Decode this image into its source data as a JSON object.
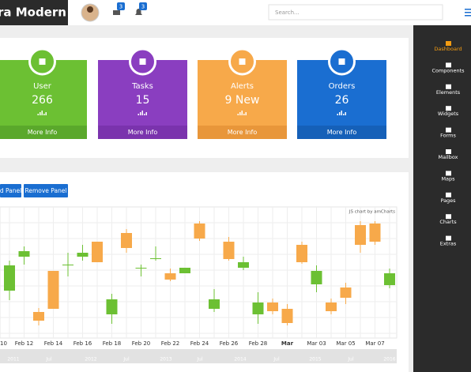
{
  "topbar": {
    "brand": "ra Modern",
    "mail_badge": 3,
    "alert_badge": 3,
    "search_placeholder": "Search..."
  },
  "sidebar": {
    "items": [
      "Dashboard",
      "Components",
      "Elements",
      "Widgets",
      "Forms",
      "Mailbox",
      "Maps",
      "Pages",
      "Charts",
      "Extras"
    ],
    "active_color": "#f39c12"
  },
  "cards": [
    {
      "label": "User",
      "value": 266,
      "link": "More Info",
      "color": "#6cc033",
      "footer_color": "#5aa82b"
    },
    {
      "label": "Tasks",
      "value": 15,
      "link": "More Info",
      "color": "#8a3ec0",
      "footer_color": "#7a33ad"
    },
    {
      "label": "Alerts",
      "value": "9 New",
      "link": "More Info",
      "color": "#f7a94a",
      "footer_color": "#e8963a"
    },
    {
      "label": "Orders",
      "value": 26,
      "link": "More Info",
      "color": "#1a6ed1",
      "footer_color": "#1560b8"
    }
  ],
  "panel_buttons": [
    "d Panel",
    "Remove Panel"
  ],
  "chart_data": {
    "type": "candlestick",
    "credit": "JS chart by amCharts",
    "x_cut_label": "10",
    "categories": [
      null,
      "Feb 12",
      null,
      "Feb 14",
      null,
      "Feb 16",
      null,
      "Feb 18",
      null,
      "Feb 20",
      null,
      "Feb 22",
      null,
      "Feb 24",
      null,
      "Feb 26",
      null,
      "Feb 28",
      null,
      "Mar",
      null,
      "Mar 03",
      null,
      "Mar 05",
      null,
      "Mar 07",
      null
    ],
    "open": [
      60,
      103,
      33,
      85,
      93,
      103,
      122,
      30,
      133,
      89,
      101,
      82,
      82,
      145,
      37,
      122,
      89,
      30,
      45,
      37,
      118,
      68,
      45,
      64,
      143,
      145,
      67
    ],
    "high": [
      98,
      116,
      38,
      85,
      108,
      118,
      122,
      56,
      138,
      93,
      116,
      88,
      89,
      148,
      62,
      128,
      103,
      58,
      50,
      43,
      122,
      92,
      50,
      70,
      148,
      148,
      88
    ],
    "low": [
      48,
      93,
      16,
      37,
      78,
      98,
      96,
      18,
      108,
      78,
      98,
      72,
      82,
      123,
      33,
      98,
      86,
      18,
      30,
      16,
      94,
      58,
      30,
      43,
      108,
      118,
      63
    ],
    "close": [
      92,
      110,
      22,
      37,
      93,
      108,
      96,
      49,
      114,
      89,
      101,
      74,
      89,
      126,
      49,
      100,
      96,
      45,
      34,
      19,
      96,
      85,
      34,
      51,
      118,
      122,
      82
    ],
    "up_color": "#6cc033",
    "down_color": "#f7a94a",
    "ylim": [
      0,
      166
    ],
    "scrollbar_labels": [
      "2011",
      "Jul",
      "2012",
      "Jul",
      "2013",
      "Jul",
      "2014",
      "Jul",
      "2015",
      "Jul",
      "2016"
    ]
  }
}
